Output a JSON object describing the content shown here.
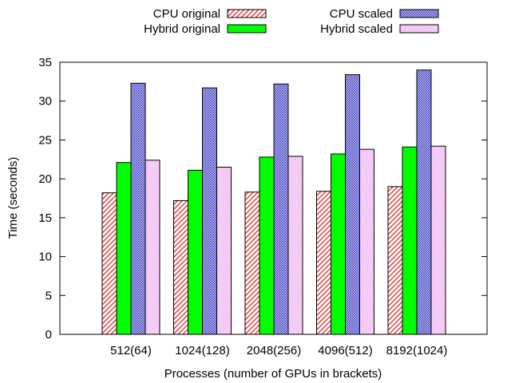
{
  "chart_data": {
    "type": "bar",
    "title": "",
    "xlabel": "Processes (number of GPUs in brackets)",
    "ylabel": "Time (seconds)",
    "ylim": [
      0,
      35
    ],
    "yticks": [
      0,
      5,
      10,
      15,
      20,
      25,
      30,
      35
    ],
    "grid": false,
    "legend_position": "top",
    "categories": [
      "512(64)",
      "1024(128)",
      "2048(256)",
      "4096(512)",
      "8192(1024)"
    ],
    "series": [
      {
        "name": "CPU original",
        "values": [
          18.2,
          17.2,
          18.3,
          18.4,
          19.0
        ],
        "color": "#e05050",
        "pattern": "diagonal-lines"
      },
      {
        "name": "Hybrid original",
        "values": [
          22.1,
          21.1,
          22.8,
          23.2,
          24.1
        ],
        "color": "#00ff00",
        "pattern": "solid"
      },
      {
        "name": "CPU scaled",
        "values": [
          32.3,
          31.7,
          32.2,
          33.4,
          34.0
        ],
        "color": "#3030c0",
        "pattern": "crosshatch"
      },
      {
        "name": "Hybrid scaled",
        "values": [
          22.4,
          21.5,
          22.9,
          23.8,
          24.2
        ],
        "color": "#e060e0",
        "pattern": "fine-diagonal"
      }
    ]
  }
}
